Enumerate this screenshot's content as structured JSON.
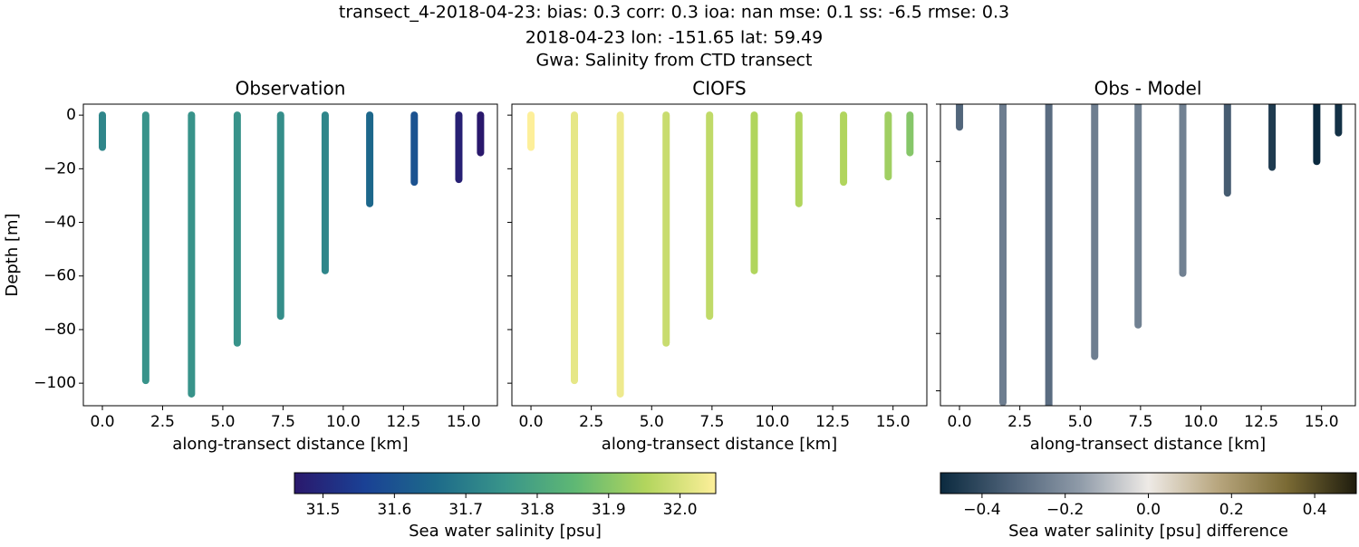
{
  "figure": {
    "title": [
      "transect_4-2018-04-23: bias: 0.3  corr: 0.3  ioa: nan  mse: 0.1  ss: -6.5  rmse: 0.3",
      "2018-04-23 lon: -151.65 lat: 59.49",
      "Gwa: Salinity from CTD transect"
    ]
  },
  "chart_data": [
    {
      "type": "strip",
      "title": "Observation",
      "xlabel": "along-transect distance [km]",
      "ylabel": "Depth [m]",
      "x": [
        0,
        1.8,
        3.7,
        5.6,
        7.4,
        9.25,
        11.1,
        12.95,
        14.8,
        15.7
      ],
      "depths": [
        -12,
        -99,
        -104,
        -85,
        -75,
        -58,
        -33,
        -25,
        -24,
        -14
      ],
      "values": [
        31.72,
        31.75,
        31.75,
        31.75,
        31.74,
        31.72,
        31.65,
        31.6,
        31.48,
        31.46
      ],
      "colorbar": 0,
      "xlim": [
        -0.79,
        16.4
      ],
      "ylim": [
        -108.4,
        4.1
      ],
      "xticks": [
        {
          "value": 0,
          "label": "0.0"
        },
        2.5,
        {
          "value": 5,
          "label": "5.0"
        },
        7.5,
        {
          "value": 10,
          "label": "10.0"
        },
        12.5,
        {
          "value": 15,
          "label": "15.0"
        }
      ],
      "yticks": [
        0,
        {
          "value": -20,
          "label": "−20"
        },
        {
          "value": -40,
          "label": "−40"
        },
        {
          "value": -60,
          "label": "−60"
        },
        {
          "value": -80,
          "label": "−80"
        },
        {
          "value": -100,
          "label": "−100"
        }
      ],
      "ytick_labels": true
    },
    {
      "type": "strip",
      "title": "CIOFS",
      "xlabel": "along-transect distance [km]",
      "x": [
        0,
        1.8,
        3.7,
        5.6,
        7.4,
        9.25,
        11.1,
        12.95,
        14.8,
        15.7
      ],
      "depths": [
        -12,
        -99,
        -104,
        -85,
        -75,
        -58,
        -33,
        -25,
        -23,
        -14
      ],
      "values": [
        32.05,
        32.02,
        32.03,
        31.98,
        31.97,
        31.95,
        31.95,
        31.95,
        31.93,
        31.9
      ],
      "colorbar": 0,
      "xlim": [
        -0.79,
        16.4
      ],
      "ylim": [
        -108.4,
        4.1
      ],
      "xticks": [
        {
          "value": 0,
          "label": "0.0"
        },
        2.5,
        {
          "value": 5,
          "label": "5.0"
        },
        7.5,
        {
          "value": 10,
          "label": "10.0"
        },
        12.5,
        {
          "value": 15,
          "label": "15.0"
        }
      ],
      "yticks": [
        0,
        -20,
        -40,
        -60,
        -80,
        -100
      ],
      "ytick_labels": false
    },
    {
      "type": "strip",
      "title": "Obs - Model",
      "xlabel": "along-transect distance [km]",
      "x": [
        0,
        1.8,
        3.7,
        5.6,
        7.4,
        9.25,
        11.1,
        12.95,
        14.8,
        15.7
      ],
      "depths": [
        -8,
        -104,
        -110,
        -88,
        -77,
        -59,
        -31,
        -22,
        -20,
        -10
      ],
      "values": [
        -0.32,
        -0.25,
        -0.3,
        -0.25,
        -0.24,
        -0.24,
        -0.35,
        -0.45,
        -0.5,
        -0.48
      ],
      "colorbar": 1,
      "xlim": [
        -0.79,
        16.4
      ],
      "ylim": [
        -105.2,
        0
      ],
      "xticks": [
        {
          "value": 0,
          "label": "0.0"
        },
        2.5,
        {
          "value": 5,
          "label": "5.0"
        },
        7.5,
        {
          "value": 10,
          "label": "10.0"
        },
        12.5,
        {
          "value": 15,
          "label": "15.0"
        }
      ],
      "yticks": [
        0,
        -20,
        -40,
        -60,
        -80,
        -100
      ],
      "ytick_labels": false
    }
  ],
  "colorbars": [
    {
      "label": "Sea water salinity [psu]",
      "clim": [
        31.46,
        32.05
      ],
      "ticks": [
        31.5,
        31.6,
        31.7,
        31.8,
        31.9,
        {
          "value": 32,
          "label": "32.0"
        }
      ],
      "cmap": [
        "#2a186c",
        "#1a4195",
        "#1d6a8a",
        "#39958a",
        "#5fb874",
        "#b2d55d",
        "#fdef9a"
      ]
    },
    {
      "label": "Sea water salinity [psu] difference",
      "clim": [
        -0.5,
        0.5
      ],
      "ticks": [
        {
          "value": -0.4,
          "label": "−0.4"
        },
        {
          "value": -0.2,
          "label": "−0.2"
        },
        {
          "value": 0,
          "label": "0.0"
        },
        0.2,
        0.4
      ],
      "cmap": [
        "#0b2a3f",
        "#4d6177",
        "#8e9aa8",
        "#eeeae6",
        "#b8a67e",
        "#7a6a34",
        "#1f1d0e"
      ]
    }
  ]
}
